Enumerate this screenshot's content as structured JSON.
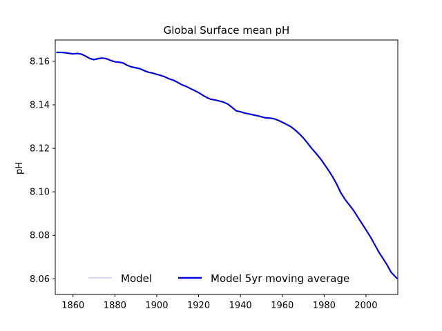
{
  "chart_data": {
    "type": "line",
    "title": "Global Surface mean pH",
    "xlabel": "",
    "ylabel": "pH",
    "xlim": [
      1851.5,
      2015.2
    ],
    "ylim": [
      8.0528,
      8.1698
    ],
    "xticks": [
      1860,
      1880,
      1900,
      1920,
      1940,
      1960,
      1980,
      2000
    ],
    "yticks": [
      8.06,
      8.08,
      8.1,
      8.12,
      8.14,
      8.16
    ],
    "ytick_labels": [
      "8.06",
      "8.08",
      "8.10",
      "8.12",
      "8.14",
      "8.16"
    ],
    "grid": false,
    "legend": {
      "placement": "lower-center",
      "frame": false
    },
    "series": [
      {
        "name": "Model",
        "color": "#c8c8f5",
        "x": [
          1852,
          1855,
          1858,
          1860,
          1862,
          1864,
          1866,
          1868,
          1870,
          1872,
          1873,
          1874,
          1876,
          1878,
          1880,
          1882,
          1884,
          1886,
          1888,
          1890,
          1892,
          1894,
          1896,
          1898,
          1900,
          1902,
          1904,
          1906,
          1908,
          1910,
          1912,
          1914,
          1916,
          1918,
          1920,
          1922,
          1924,
          1926,
          1928,
          1930,
          1932,
          1934,
          1936,
          1938,
          1940,
          1942,
          1944,
          1946,
          1948,
          1950,
          1952,
          1954,
          1956,
          1958,
          1960,
          1962,
          1964,
          1966,
          1968,
          1970,
          1972,
          1974,
          1976,
          1978,
          1980,
          1982,
          1984,
          1986,
          1988,
          1990,
          1992,
          1994,
          1996,
          1998,
          2000,
          2002,
          2004,
          2006,
          2008,
          2010,
          2012,
          2014,
          2015
        ],
        "y": [
          8.1641,
          8.1642,
          8.1637,
          8.1632,
          8.1636,
          8.1634,
          8.1623,
          8.1611,
          8.1605,
          8.1614,
          8.1622,
          8.1617,
          8.1612,
          8.1603,
          8.1596,
          8.1597,
          8.1594,
          8.158,
          8.1574,
          8.157,
          8.1566,
          8.1557,
          8.155,
          8.1546,
          8.154,
          8.1535,
          8.1528,
          8.1519,
          8.1513,
          8.1503,
          8.1492,
          8.1485,
          8.1475,
          8.1466,
          8.1456,
          8.1444,
          8.1433,
          8.1425,
          8.1422,
          8.1417,
          8.1412,
          8.1403,
          8.1388,
          8.1372,
          8.1368,
          8.1362,
          8.1358,
          8.1354,
          8.135,
          8.1345,
          8.134,
          8.1339,
          8.1336,
          8.1329,
          8.132,
          8.131,
          8.13,
          8.1285,
          8.1268,
          8.1248,
          8.1225,
          8.12,
          8.1178,
          8.1155,
          8.1128,
          8.11,
          8.107,
          8.1035,
          8.0995,
          8.0965,
          8.094,
          8.0915,
          8.0885,
          8.0855,
          8.0825,
          8.0795,
          8.076,
          8.0725,
          8.0695,
          8.0665,
          8.063,
          8.061,
          8.06
        ]
      },
      {
        "name": "Model 5yr moving average",
        "color": "#0000e0",
        "x": [
          1852,
          1855,
          1858,
          1860,
          1862,
          1864,
          1866,
          1868,
          1870,
          1872,
          1874,
          1876,
          1878,
          1880,
          1882,
          1884,
          1886,
          1888,
          1890,
          1892,
          1894,
          1896,
          1898,
          1900,
          1902,
          1904,
          1906,
          1908,
          1910,
          1912,
          1914,
          1916,
          1918,
          1920,
          1922,
          1924,
          1926,
          1928,
          1930,
          1932,
          1934,
          1936,
          1938,
          1940,
          1942,
          1944,
          1946,
          1948,
          1950,
          1952,
          1954,
          1956,
          1958,
          1960,
          1962,
          1964,
          1966,
          1968,
          1970,
          1972,
          1974,
          1976,
          1978,
          1980,
          1982,
          1984,
          1986,
          1988,
          1990,
          1992,
          1994,
          1996,
          1998,
          2000,
          2002,
          2004,
          2006,
          2008,
          2010,
          2012,
          2014,
          2015
        ],
        "y": [
          8.1641,
          8.1641,
          8.1637,
          8.1634,
          8.1636,
          8.1633,
          8.1624,
          8.1613,
          8.1608,
          8.1612,
          8.1615,
          8.1612,
          8.1604,
          8.1598,
          8.1596,
          8.1592,
          8.1581,
          8.1574,
          8.157,
          8.1566,
          8.1557,
          8.155,
          8.1546,
          8.154,
          8.1535,
          8.1528,
          8.1519,
          8.1513,
          8.1503,
          8.1492,
          8.1485,
          8.1475,
          8.1466,
          8.1456,
          8.1444,
          8.1433,
          8.1425,
          8.1422,
          8.1417,
          8.1412,
          8.1403,
          8.1388,
          8.1372,
          8.1368,
          8.1362,
          8.1358,
          8.1354,
          8.135,
          8.1345,
          8.134,
          8.1339,
          8.1336,
          8.1329,
          8.132,
          8.131,
          8.13,
          8.1285,
          8.1268,
          8.1248,
          8.1225,
          8.12,
          8.1178,
          8.1155,
          8.1128,
          8.11,
          8.107,
          8.1035,
          8.0995,
          8.0965,
          8.094,
          8.0915,
          8.0885,
          8.0855,
          8.0825,
          8.0795,
          8.076,
          8.0725,
          8.0695,
          8.0665,
          8.063,
          8.061,
          8.06
        ]
      }
    ]
  }
}
